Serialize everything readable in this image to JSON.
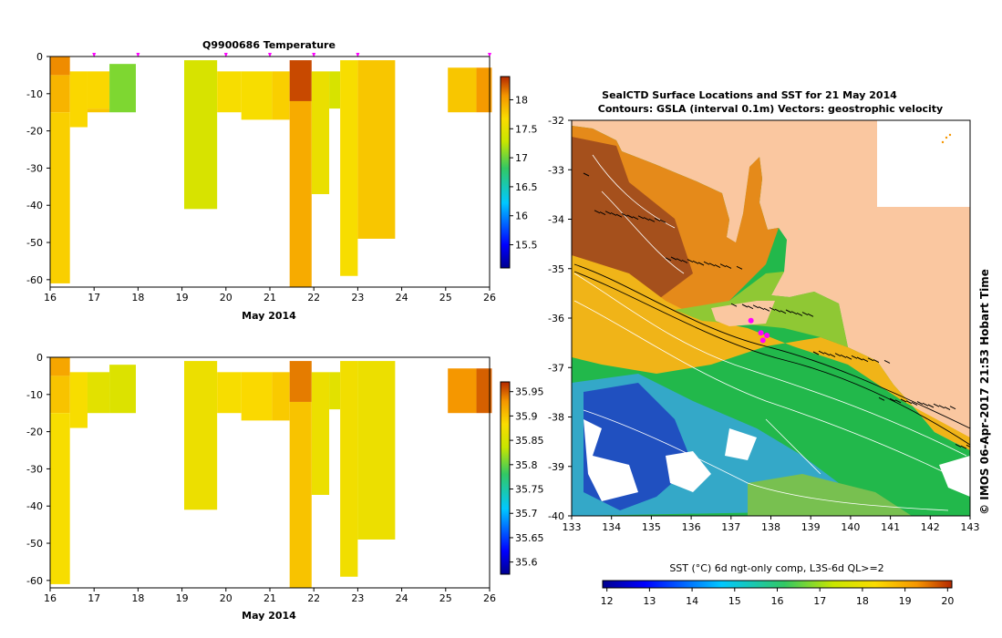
{
  "colors": {
    "land": "#fac7a0",
    "no_data": "#ffffff",
    "station_marker": "#ff00ff",
    "contour_line": "#ffffff",
    "velocity_vector": "#000000"
  },
  "chart_data": [
    {
      "id": "temperature_section",
      "type": "heatmap",
      "title": "Q9900686  Temperature",
      "xlabel": "May 2014",
      "ylabel": "",
      "xlim": [
        16,
        26
      ],
      "ylim": [
        -62,
        0
      ],
      "xticks": [
        "16",
        "17",
        "18",
        "19",
        "20",
        "21",
        "22",
        "23",
        "24",
        "25",
        "26"
      ],
      "yticks": [
        "0",
        "-10",
        "-20",
        "-30",
        "-40",
        "-50",
        "-60"
      ],
      "colorbar_ticks": [
        "15.5",
        "16",
        "16.5",
        "17",
        "17.5",
        "18"
      ],
      "colorbar_range": [
        15.1,
        18.4
      ],
      "surface_markers": [
        17,
        18,
        20,
        21,
        22,
        23,
        26
      ],
      "profiles": [
        {
          "x0": 16.0,
          "x1": 16.45,
          "layers": [
            [
              0,
              -5,
              18.1
            ],
            [
              -5,
              -15,
              17.9
            ],
            [
              -15,
              -61,
              17.75
            ]
          ]
        },
        {
          "x0": 16.45,
          "x1": 16.85,
          "layers": [
            [
              -4,
              -19,
              17.7
            ]
          ]
        },
        {
          "x0": 16.85,
          "x1": 17.35,
          "layers": [
            [
              -4,
              -14,
              17.7
            ],
            [
              -14,
              -15,
              17.8
            ]
          ]
        },
        {
          "x0": 17.35,
          "x1": 17.95,
          "layers": [
            [
              -2,
              -15,
              17.05
            ]
          ]
        },
        {
          "x0": 19.05,
          "x1": 19.8,
          "layers": [
            [
              -1,
              -41,
              17.4
            ]
          ]
        },
        {
          "x0": 19.8,
          "x1": 20.35,
          "layers": [
            [
              -4,
              -15,
              17.65
            ]
          ]
        },
        {
          "x0": 20.35,
          "x1": 21.05,
          "layers": [
            [
              -4,
              -17,
              17.65
            ]
          ]
        },
        {
          "x0": 21.05,
          "x1": 21.45,
          "layers": [
            [
              -4,
              -17,
              17.75
            ]
          ]
        },
        {
          "x0": 21.45,
          "x1": 21.95,
          "layers": [
            [
              -1,
              -12,
              18.3
            ],
            [
              -12,
              -62,
              17.95
            ]
          ]
        },
        {
          "x0": 21.95,
          "x1": 22.35,
          "layers": [
            [
              -4,
              -37,
              17.55
            ]
          ]
        },
        {
          "x0": 22.35,
          "x1": 22.6,
          "layers": [
            [
              -4,
              -14,
              17.4
            ]
          ]
        },
        {
          "x0": 22.6,
          "x1": 23.0,
          "layers": [
            [
              -1,
              -59,
              17.65
            ]
          ]
        },
        {
          "x0": 23.0,
          "x1": 23.85,
          "layers": [
            [
              -1,
              -49,
              17.8
            ]
          ]
        },
        {
          "x0": 25.05,
          "x1": 25.7,
          "layers": [
            [
              -3,
              -15,
              17.8
            ]
          ]
        },
        {
          "x0": 25.7,
          "x1": 26.05,
          "layers": [
            [
              -3,
              -15,
              18.05
            ]
          ]
        }
      ]
    },
    {
      "id": "salinity_section",
      "type": "heatmap",
      "title": "",
      "xlabel": "May 2014",
      "ylabel": "",
      "xlim": [
        16,
        26
      ],
      "ylim": [
        -62,
        0
      ],
      "xticks": [
        "16",
        "17",
        "18",
        "19",
        "20",
        "21",
        "22",
        "23",
        "24",
        "25",
        "26"
      ],
      "yticks": [
        "0",
        "-10",
        "-20",
        "-30",
        "-40",
        "-50",
        "-60"
      ],
      "colorbar_ticks": [
        "35.6",
        "35.65",
        "35.7",
        "35.75",
        "35.8",
        "35.85",
        "35.9",
        "35.95"
      ],
      "colorbar_range": [
        35.575,
        35.97
      ],
      "profiles": [
        {
          "x0": 16.0,
          "x1": 16.45,
          "layers": [
            [
              0,
              -5,
              35.92
            ],
            [
              -5,
              -15,
              35.9
            ],
            [
              -15,
              -61,
              35.88
            ]
          ]
        },
        {
          "x0": 16.45,
          "x1": 16.85,
          "layers": [
            [
              -4,
              -19,
              35.88
            ]
          ]
        },
        {
          "x0": 16.85,
          "x1": 17.35,
          "layers": [
            [
              -4,
              -15,
              35.86
            ]
          ]
        },
        {
          "x0": 17.35,
          "x1": 17.95,
          "layers": [
            [
              -2,
              -15,
              35.855
            ]
          ]
        },
        {
          "x0": 19.05,
          "x1": 19.8,
          "layers": [
            [
              -1,
              -41,
              35.87
            ]
          ]
        },
        {
          "x0": 19.8,
          "x1": 20.35,
          "layers": [
            [
              -4,
              -15,
              35.88
            ]
          ]
        },
        {
          "x0": 20.35,
          "x1": 21.05,
          "layers": [
            [
              -4,
              -17,
              35.885
            ]
          ]
        },
        {
          "x0": 21.05,
          "x1": 21.45,
          "layers": [
            [
              -4,
              -17,
              35.895
            ]
          ]
        },
        {
          "x0": 21.45,
          "x1": 21.95,
          "layers": [
            [
              -1,
              -12,
              35.94
            ],
            [
              -12,
              -62,
              35.9
            ]
          ]
        },
        {
          "x0": 21.95,
          "x1": 22.35,
          "layers": [
            [
              -4,
              -37,
              35.87
            ]
          ]
        },
        {
          "x0": 22.35,
          "x1": 22.6,
          "layers": [
            [
              -4,
              -14,
              35.86
            ]
          ]
        },
        {
          "x0": 22.6,
          "x1": 23.0,
          "layers": [
            [
              -1,
              -59,
              35.875
            ]
          ]
        },
        {
          "x0": 23.0,
          "x1": 23.85,
          "layers": [
            [
              -1,
              -49,
              35.87
            ]
          ]
        },
        {
          "x0": 25.05,
          "x1": 25.7,
          "layers": [
            [
              -3,
              -15,
              35.93
            ]
          ]
        },
        {
          "x0": 25.7,
          "x1": 26.05,
          "layers": [
            [
              -3,
              -15,
              35.95
            ]
          ]
        }
      ]
    },
    {
      "id": "sst_map",
      "type": "heatmap",
      "title": "SealCTD Surface Locations and SST for 21 May 2014",
      "subtitle": "Contours: GSLA (interval 0.1m) Vectors: geostrophic velocity",
      "xlabel": "",
      "ylabel": "",
      "xlim": [
        133,
        143
      ],
      "ylim": [
        -40,
        -32
      ],
      "xticks": [
        "133",
        "134",
        "135",
        "136",
        "137",
        "138",
        "139",
        "140",
        "141",
        "142",
        "143"
      ],
      "yticks": [
        "-32",
        "-33",
        "-34",
        "-35",
        "-36",
        "-37",
        "-38",
        "-39",
        "-40"
      ],
      "colorbar_label": "SST (°C) 6d ngt-only comp, L3S-6d QL>=2",
      "colorbar_ticks": [
        "12",
        "13",
        "14",
        "15",
        "16",
        "17",
        "18",
        "19",
        "20"
      ],
      "colorbar_range": [
        11.9,
        20.1
      ],
      "seal_positions": [
        [
          137.5,
          -36.05
        ],
        [
          137.75,
          -36.3
        ],
        [
          137.9,
          -36.35
        ],
        [
          137.8,
          -36.45
        ]
      ]
    }
  ],
  "side_label": "© IMOS 06-Apr-2017 21:53 Hobart Time"
}
